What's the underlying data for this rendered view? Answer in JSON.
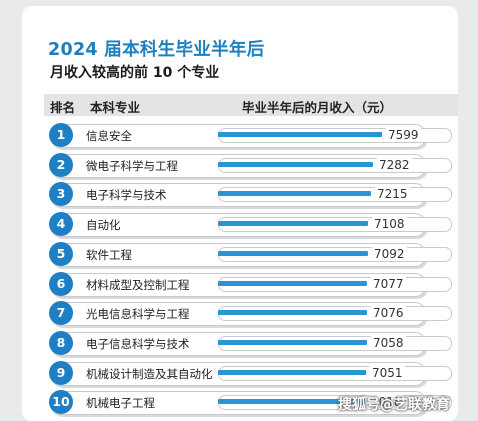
{
  "chart_data": {
    "type": "bar",
    "title": "2024 届本科生毕业半年后",
    "subtitle": "月收入较高的前 10 个专业",
    "headers": {
      "rank": "排名",
      "major": "本科专业",
      "income": "毕业半年后的月收入（元）"
    },
    "ranks": [
      "1",
      "2",
      "3",
      "4",
      "5",
      "6",
      "7",
      "8",
      "9",
      "10"
    ],
    "categories": [
      "信息安全",
      "微电子科学与工程",
      "电子科学与技术",
      "自动化",
      "软件工程",
      "材料成型及控制工程",
      "光电信息科学与工程",
      "电子信息科学与技术",
      "机械设计制造及其自动化",
      "机械电子工程"
    ],
    "values": [
      7599,
      7282,
      7215,
      7108,
      7092,
      7077,
      7076,
      7058,
      7051,
      7018
    ],
    "value_labels": [
      "7599",
      "7282",
      "7215",
      "7108",
      "7092",
      "7077",
      "7076",
      "7058",
      "7051",
      "7018"
    ],
    "colors": {
      "bar": "#2a95d4",
      "badge": "#1f7fc4",
      "title": "#1c7fbf"
    }
  },
  "watermark": "搜狐号@艺联教育"
}
